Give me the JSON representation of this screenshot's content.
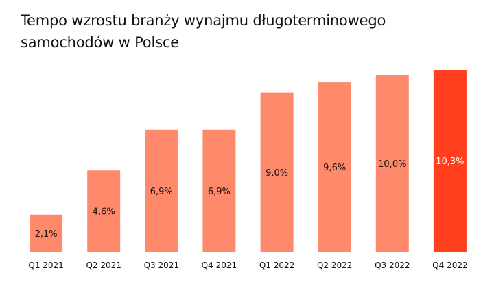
{
  "chart_data": {
    "type": "bar",
    "title": "Tempo wzrostu branży wynajmu długoterminowego samochodów w Polsce",
    "categories": [
      "Q1 2021",
      "Q2 2021",
      "Q3 2021",
      "Q4 2021",
      "Q1 2022",
      "Q2 2022",
      "Q3 2022",
      "Q4 2022"
    ],
    "values": [
      2.1,
      4.6,
      6.9,
      6.9,
      9.0,
      9.6,
      10.0,
      10.3
    ],
    "value_labels": [
      "2,1%",
      "4,6%",
      "6,9%",
      "6,9%",
      "9,0%",
      "9,6%",
      "10,0%",
      "10,3%"
    ],
    "ylim": [
      0,
      10.3
    ],
    "grid": false,
    "highlight_index": 7,
    "colors": {
      "bar": "#FF8A6B",
      "highlight": "#FF3F1E",
      "label": "#111111",
      "highlight_label": "#ffffff",
      "baseline": "#d9d9d9"
    }
  }
}
